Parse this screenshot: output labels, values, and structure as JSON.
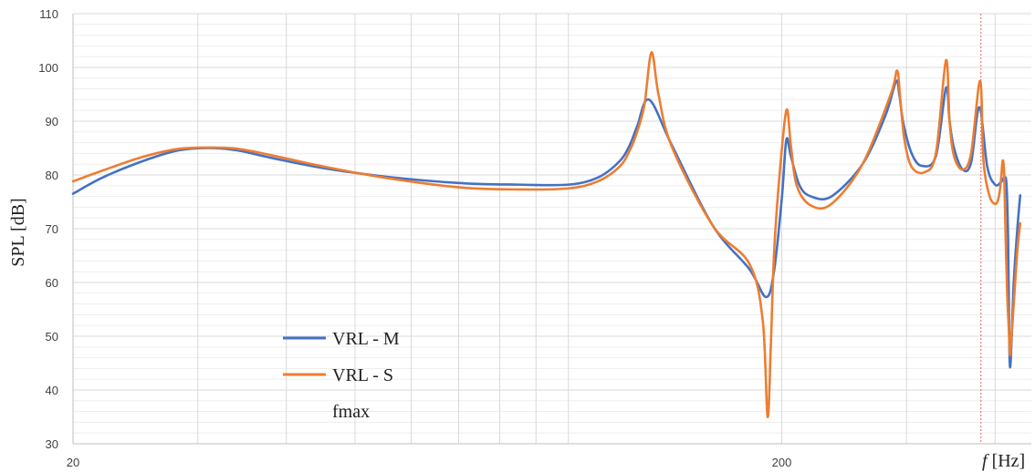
{
  "chart_data": {
    "type": "line",
    "xlabel": {
      "italic": "f",
      "rest": " [Hz]"
    },
    "ylabel": "SPL [dB]",
    "x_scale": "log",
    "xlim": [
      20,
      450
    ],
    "ylim": [
      30,
      110
    ],
    "y_ticks": [
      30,
      40,
      50,
      60,
      70,
      80,
      90,
      100,
      110
    ],
    "x_ticks": [
      20,
      200
    ],
    "grid": true,
    "legend_position": "bottom-left",
    "fmax": 382,
    "colors": {
      "m": "#4472C4",
      "s": "#ED7D31",
      "fmax": "#E06666",
      "grid": "#D9D9D9"
    },
    "series": [
      {
        "name": "VRL - M",
        "x": [
          20,
          22,
          25,
          28,
          31,
          34,
          38,
          45,
          55,
          70,
          85,
          100,
          110,
          118,
          122,
          125,
          130,
          140,
          160,
          180,
          190,
          195,
          200,
          203,
          206,
          212,
          220,
          235,
          260,
          280,
          290,
          293,
          297,
          305,
          315,
          330,
          341,
          345,
          350,
          360,
          370,
          380,
          390,
          400,
          408,
          412,
          415,
          417,
          418,
          420,
          425,
          430,
          434
        ],
        "values": [
          76.5,
          79.5,
          82.5,
          84.5,
          85,
          84.6,
          83.2,
          81.3,
          79.7,
          78.5,
          78.2,
          78.2,
          79.5,
          82.5,
          85.5,
          89,
          94,
          85.5,
          70.5,
          62.5,
          57.3,
          62,
          75.5,
          86.5,
          83.5,
          78,
          76,
          76,
          82,
          91,
          97.4,
          95,
          89.5,
          84,
          81.7,
          83.5,
          96.2,
          90,
          85,
          81,
          82.3,
          92.6,
          81.5,
          78.2,
          78.7,
          79.5,
          78.5,
          70,
          60,
          44.2,
          60,
          70,
          76.2
        ]
      },
      {
        "name": "VRL - S",
        "x": [
          20,
          22,
          25,
          28,
          31,
          34,
          38,
          45,
          55,
          70,
          85,
          100,
          110,
          118,
          122,
          125,
          128,
          131,
          134,
          140,
          160,
          180,
          188,
          191,
          193,
          195,
          198,
          203,
          206,
          210,
          220,
          235,
          260,
          285,
          291,
          294,
          298,
          305,
          318,
          330,
          341,
          345,
          350,
          360,
          370,
          381,
          385,
          392,
          400,
          405,
          408,
          410,
          412,
          414,
          416,
          418,
          420,
          422,
          425,
          430,
          434
        ],
        "values": [
          78.8,
          80.8,
          83.3,
          84.8,
          85.1,
          84.9,
          83.7,
          81.6,
          79.5,
          77.7,
          77.3,
          77.5,
          78.8,
          81.5,
          84.5,
          88,
          93,
          102.8,
          95,
          85.2,
          70.5,
          63.5,
          53,
          35,
          48,
          65,
          78,
          92,
          85.5,
          78,
          74.3,
          74.6,
          82,
          95,
          99.4,
          94,
          86.5,
          81.5,
          80.5,
          84,
          101.3,
          90,
          83.5,
          81,
          84,
          97.5,
          83,
          76.5,
          74.6,
          76,
          79.5,
          82.7,
          80,
          68,
          58,
          52,
          46.5,
          50,
          56,
          66,
          71
        ]
      }
    ],
    "legend": [
      {
        "label": "VRL - M",
        "series": 0
      },
      {
        "label": "VRL - S",
        "series": 1
      },
      {
        "label": "fmax",
        "series": null
      }
    ]
  }
}
